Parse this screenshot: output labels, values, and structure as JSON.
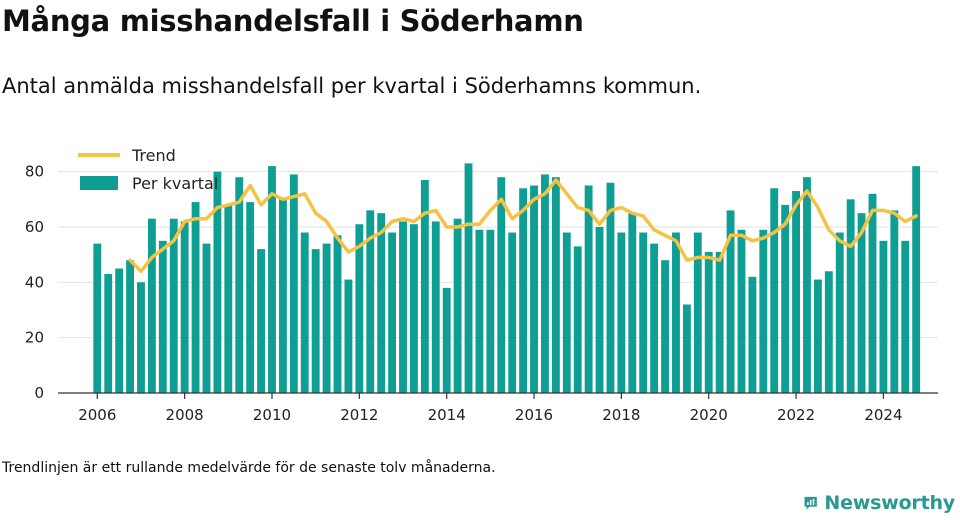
{
  "header": {
    "title": "Många misshandelsfall i Söderhamn",
    "subtitle": "Antal anmälda misshandelsfall per kvartal i Söderhamns kommun."
  },
  "footnote": "Trendlinjen är ett rullande medelvärde för de senaste tolv månaderna.",
  "brand": {
    "name": "Newsworthy",
    "icon": "newsworthy-logo-icon",
    "color": "#2a9a90"
  },
  "chart_data": {
    "type": "bar",
    "x_start": {
      "year": 2006,
      "quarter": 1
    },
    "ylim": [
      0,
      90
    ],
    "yticks": [
      0,
      20,
      40,
      60,
      80
    ],
    "xlim": [
      2005.1,
      2025.25
    ],
    "xticks": [
      2006,
      2008,
      2010,
      2012,
      2014,
      2016,
      2018,
      2020,
      2022,
      2024
    ],
    "grid": true,
    "legend_placement": "top-left",
    "series": [
      {
        "name": "Per kvartal",
        "type": "bar",
        "color": "#0e9e94",
        "values": [
          54,
          43,
          45,
          48,
          40,
          63,
          55,
          63,
          62,
          69,
          54,
          80,
          68,
          78,
          69,
          52,
          82,
          70,
          79,
          58,
          52,
          54,
          57,
          41,
          61,
          66,
          65,
          58,
          62,
          61,
          77,
          62,
          38,
          63,
          83,
          59,
          59,
          78,
          58,
          74,
          75,
          79,
          78,
          58,
          53,
          75,
          60,
          76,
          58,
          65,
          58,
          54,
          48,
          58,
          32,
          58,
          51,
          51,
          66,
          59,
          42,
          59,
          74,
          68,
          73,
          78,
          41,
          44,
          58,
          70,
          65,
          72,
          55,
          66,
          55,
          82
        ]
      },
      {
        "name": "Trend",
        "type": "line",
        "color": "#f5c242",
        "values": [
          null,
          null,
          null,
          48,
          44,
          49,
          52,
          55,
          62,
          63,
          63,
          67,
          68,
          69,
          75,
          68,
          72,
          70,
          71,
          72,
          65,
          62,
          56,
          51,
          53,
          56,
          58,
          62,
          63,
          62,
          65,
          66,
          60,
          60,
          61,
          61,
          66,
          70,
          63,
          66,
          70,
          72,
          77,
          72,
          67,
          66,
          61,
          66,
          67,
          65,
          64,
          59,
          57,
          55,
          48,
          49,
          49,
          48,
          57,
          57,
          55,
          56,
          58,
          61,
          68,
          73,
          67,
          59,
          55,
          53,
          58,
          66,
          66,
          65,
          62,
          64
        ]
      }
    ]
  }
}
